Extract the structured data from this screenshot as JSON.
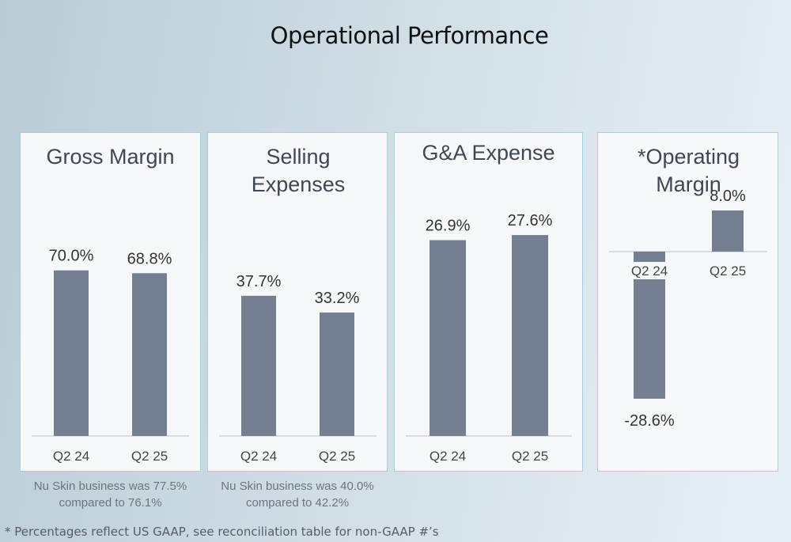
{
  "page": {
    "title": "Operational Performance",
    "footnote": "* Percentages reflect US GAAP, see reconciliation table for non-GAAP #’s"
  },
  "panels": [
    {
      "title": "Gross Margin",
      "note": [
        "Nu Skin business was 77.5%",
        "compared to 76.1%"
      ]
    },
    {
      "title": "Selling Expenses",
      "note": [
        "Nu Skin business was 40.0%",
        "compared to 42.2%"
      ]
    },
    {
      "title": "G&A Expense",
      "note": []
    },
    {
      "title": "*Operating Margin",
      "note": []
    }
  ],
  "chart_data": [
    {
      "type": "bar",
      "title": "Gross Margin",
      "categories": [
        "Q2 24",
        "Q2 25"
      ],
      "values": [
        70.0,
        68.8
      ],
      "labels": [
        "70.0%",
        "68.8%"
      ]
    },
    {
      "type": "bar",
      "title": "Selling Expenses",
      "categories": [
        "Q2 24",
        "Q2 25"
      ],
      "values": [
        37.7,
        33.2
      ],
      "labels": [
        "37.7%",
        "33.2%"
      ]
    },
    {
      "type": "bar",
      "title": "G&A Expense",
      "categories": [
        "Q2 24",
        "Q2 25"
      ],
      "values": [
        26.9,
        27.6
      ],
      "labels": [
        "26.9%",
        "27.6%"
      ]
    },
    {
      "type": "bar",
      "title": "*Operating Margin",
      "categories": [
        "Q2 24",
        "Q2 25"
      ],
      "values": [
        -28.6,
        8.0
      ],
      "labels": [
        "-28.6%",
        "8.0%"
      ]
    }
  ],
  "colors": {
    "bar": "#748091",
    "panel_border": "#9fd3e3",
    "panel_bg": "#f7f8f9"
  }
}
